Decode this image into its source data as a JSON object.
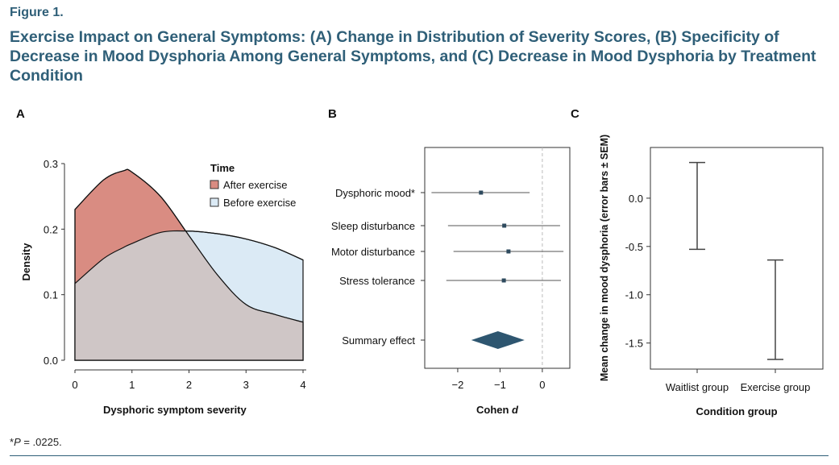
{
  "figure_label": "Figure 1.",
  "title": "Exercise Impact on General Symptoms: (A) Change in Distribution of Severity Scores, (B) Specificity of Decrease in Mood Dysphoria Among General Symptoms, and (C) Decrease in Mood Dysphoria by Treatment Condition",
  "footnote": {
    "prefix": "*",
    "italic": "P",
    "rest": " = .0225."
  },
  "colors": {
    "title": "#2f5f78",
    "after": "#d98c82",
    "before": "#dbeaf5",
    "overlap": "#cfc6c6",
    "diamond": "#2e5670",
    "point": "#2e4a5e"
  },
  "chart_data": [
    {
      "panel": "A",
      "type": "area",
      "xlabel": "Dysphoric symptom severity",
      "ylabel": "Density",
      "xlim": [
        0,
        4
      ],
      "ylim": [
        0,
        0.3
      ],
      "xticks": [
        "0",
        "1",
        "2",
        "3",
        "4"
      ],
      "yticks": [
        "0.0",
        "0.1",
        "0.2",
        "0.3"
      ],
      "legend": {
        "title": "Time",
        "placement": "top-right"
      },
      "x": [
        0,
        0.5,
        0.85,
        1,
        1.5,
        2,
        2.5,
        3,
        3.5,
        4
      ],
      "series": [
        {
          "name": "After exercise",
          "values": [
            0.23,
            0.275,
            0.289,
            0.287,
            0.25,
            0.19,
            0.13,
            0.085,
            0.07,
            0.058
          ]
        },
        {
          "name": "Before exercise",
          "values": [
            0.117,
            0.155,
            0.172,
            0.178,
            0.195,
            0.197,
            0.193,
            0.185,
            0.172,
            0.153
          ]
        }
      ]
    },
    {
      "panel": "B",
      "type": "forest",
      "xlabel_prefix": "Cohen ",
      "xlabel_italic": "d",
      "xlim": [
        -2.78,
        0.65
      ],
      "xticks": [
        "−2",
        "−1",
        "0"
      ],
      "xtick_values": [
        -2,
        -1,
        0
      ],
      "reference_line": 0,
      "rows": [
        {
          "label": "Dysphoric mood*",
          "d": -1.45,
          "lo": -2.62,
          "hi": -0.3
        },
        {
          "label": "Sleep disturbance",
          "d": -0.9,
          "lo": -2.23,
          "hi": 0.42
        },
        {
          "label": "Motor disturbance",
          "d": -0.8,
          "lo": -2.1,
          "hi": 0.5
        },
        {
          "label": "Stress tolerance",
          "d": -0.91,
          "lo": -2.27,
          "hi": 0.44
        }
      ],
      "summary": {
        "label": "Summary effect",
        "d": -1.05,
        "lo": -1.68,
        "hi": -0.42
      }
    },
    {
      "panel": "C",
      "type": "errorbar",
      "xlabel": "Condition group",
      "ylabel": "Mean change in mood dysphoria (error bars ± SEM)",
      "ylim": [
        -1.77,
        0.525
      ],
      "yticks": [
        "0.0",
        "-0.5",
        "-1.0",
        "-1.5"
      ],
      "ytick_values": [
        0,
        -0.5,
        -1,
        -1.5
      ],
      "categories": [
        "Waitlist group",
        "Exercise group"
      ],
      "upper": [
        0.37,
        -0.64
      ],
      "lower": [
        -0.53,
        -1.67
      ]
    }
  ]
}
